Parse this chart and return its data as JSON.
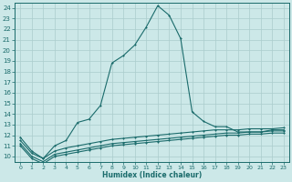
{
  "xlabel": "Humidex (Indice chaleur)",
  "background_color": "#cce8e8",
  "grid_color": "#aacccc",
  "line_color": "#1a6b6b",
  "xlim": [
    -0.5,
    23.5
  ],
  "ylim": [
    9.5,
    24.5
  ],
  "x_ticks": [
    0,
    1,
    2,
    3,
    4,
    5,
    6,
    7,
    8,
    9,
    10,
    11,
    12,
    13,
    14,
    15,
    16,
    17,
    18,
    19,
    20,
    21,
    22,
    23
  ],
  "y_ticks": [
    10,
    11,
    12,
    13,
    14,
    15,
    16,
    17,
    18,
    19,
    20,
    21,
    22,
    23,
    24
  ],
  "line1_x": [
    0,
    1,
    2,
    3,
    4,
    5,
    6,
    7,
    8,
    9,
    10,
    11,
    12,
    13,
    14,
    15,
    16,
    17,
    18,
    19,
    20,
    21,
    22,
    23
  ],
  "line1_y": [
    11.8,
    10.5,
    9.8,
    11.0,
    11.5,
    13.2,
    13.5,
    14.8,
    18.8,
    19.5,
    20.5,
    22.2,
    24.2,
    23.3,
    21.1,
    14.2,
    13.3,
    12.8,
    12.8,
    12.3,
    12.3,
    12.3,
    12.5,
    12.5
  ],
  "line2_x": [
    0,
    1,
    2,
    3,
    4,
    5,
    6,
    7,
    8,
    9,
    10,
    11,
    12,
    13,
    14,
    15,
    16,
    17,
    18,
    19,
    20,
    21,
    22,
    23
  ],
  "line2_y": [
    11.5,
    10.3,
    9.8,
    10.5,
    10.8,
    11.0,
    11.2,
    11.4,
    11.6,
    11.7,
    11.8,
    11.9,
    12.0,
    12.1,
    12.2,
    12.3,
    12.4,
    12.5,
    12.5,
    12.5,
    12.6,
    12.6,
    12.6,
    12.7
  ],
  "line3_x": [
    0,
    1,
    2,
    3,
    4,
    5,
    6,
    7,
    8,
    9,
    10,
    11,
    12,
    13,
    14,
    15,
    16,
    17,
    18,
    19,
    20,
    21,
    22,
    23
  ],
  "line3_y": [
    11.2,
    10.0,
    9.5,
    10.2,
    10.4,
    10.6,
    10.8,
    11.0,
    11.2,
    11.3,
    11.4,
    11.5,
    11.6,
    11.7,
    11.8,
    11.9,
    12.0,
    12.1,
    12.2,
    12.2,
    12.3,
    12.3,
    12.4,
    12.4
  ],
  "line4_x": [
    0,
    1,
    2,
    3,
    4,
    5,
    6,
    7,
    8,
    9,
    10,
    11,
    12,
    13,
    14,
    15,
    16,
    17,
    18,
    19,
    20,
    21,
    22,
    23
  ],
  "line4_y": [
    11.0,
    9.8,
    9.3,
    10.0,
    10.2,
    10.4,
    10.6,
    10.8,
    11.0,
    11.1,
    11.2,
    11.3,
    11.4,
    11.5,
    11.6,
    11.7,
    11.8,
    11.9,
    12.0,
    12.0,
    12.1,
    12.1,
    12.2,
    12.2
  ]
}
